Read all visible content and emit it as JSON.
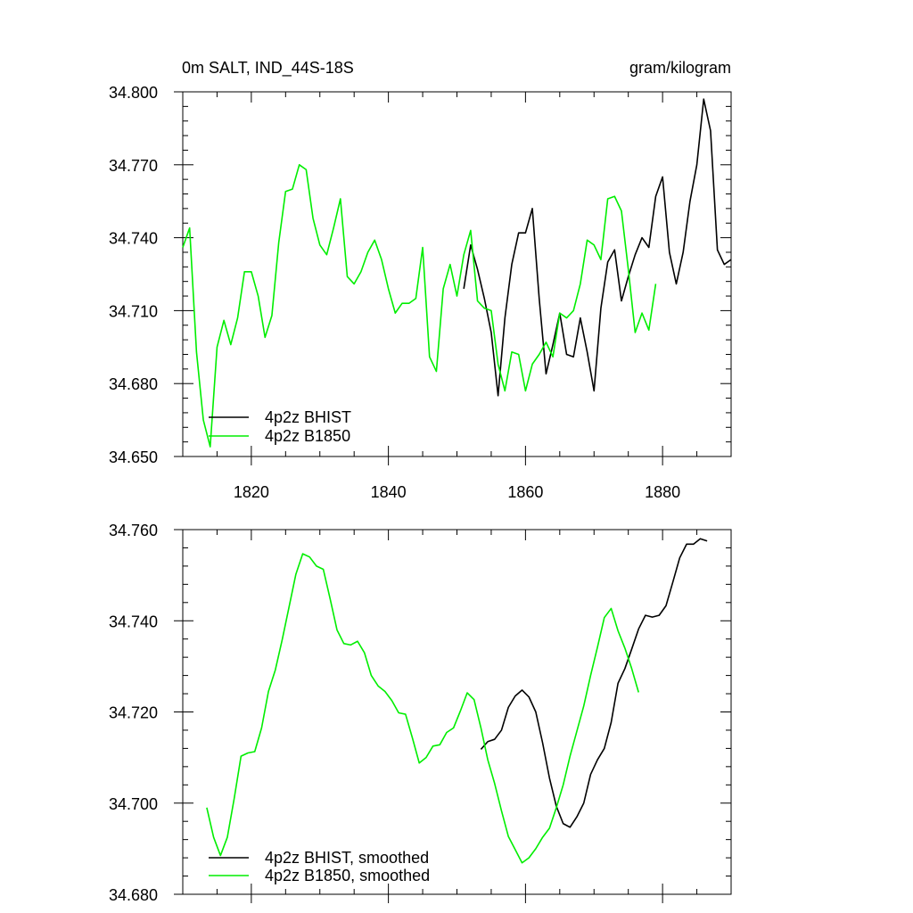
{
  "chart_data": [
    {
      "type": "line",
      "title": "0m SALT, IND_44S-18S",
      "units": "gram/kilogram",
      "xlim": [
        1810,
        1890
      ],
      "ylim": [
        34.65,
        34.8
      ],
      "xticks": [
        "1820",
        "1840",
        "1860",
        "1880"
      ],
      "yticks": [
        "34.650",
        "34.680",
        "34.710",
        "34.740",
        "34.770",
        "34.800"
      ],
      "series": [
        {
          "name": "4p2z BHIST",
          "color": "#000000",
          "x0": 1851,
          "values": [
            34.719,
            34.737,
            34.727,
            34.715,
            34.701,
            34.675,
            34.707,
            34.729,
            34.742,
            34.742,
            34.752,
            34.715,
            34.684,
            34.696,
            34.709,
            34.692,
            34.691,
            34.707,
            34.693,
            34.677,
            34.711,
            34.73,
            34.735,
            34.714,
            34.724,
            34.733,
            34.74,
            34.736,
            34.757,
            34.765,
            34.734,
            34.721,
            34.734,
            34.755,
            34.77,
            34.797,
            34.784,
            34.735,
            34.729,
            34.731
          ]
        },
        {
          "name": "4p2z B1850",
          "color": "#00ee00",
          "x0": 1810,
          "values": [
            34.736,
            34.744,
            34.693,
            34.665,
            34.654,
            34.695,
            34.706,
            34.696,
            34.707,
            34.726,
            34.726,
            34.716,
            34.699,
            34.708,
            34.738,
            34.759,
            34.76,
            34.77,
            34.768,
            34.748,
            34.737,
            34.733,
            34.744,
            34.756,
            34.724,
            34.721,
            34.726,
            34.734,
            34.739,
            34.731,
            34.719,
            34.709,
            34.713,
            34.713,
            34.715,
            34.736,
            34.691,
            34.685,
            34.719,
            34.729,
            34.716,
            34.733,
            34.743,
            34.714,
            34.711,
            34.71,
            34.688,
            34.677,
            34.693,
            34.692,
            34.677,
            34.688,
            34.692,
            34.697,
            34.691,
            34.709,
            34.707,
            34.71,
            34.721,
            34.739,
            34.737,
            34.731,
            34.756,
            34.757,
            34.751,
            34.727,
            34.701,
            34.709,
            34.702,
            34.721
          ]
        }
      ]
    },
    {
      "type": "line",
      "xlim": [
        1810,
        1890
      ],
      "ylim": [
        34.68,
        34.76
      ],
      "yticks": [
        "34.680",
        "34.700",
        "34.720",
        "34.740",
        "34.760"
      ],
      "series": [
        {
          "name": "4p2z BHIST, smoothed",
          "color": "#000000",
          "x0": 1853.5,
          "values": [
            34.7118,
            34.7135,
            34.714,
            34.716,
            34.721,
            34.7235,
            34.7248,
            34.7233,
            34.72,
            34.7132,
            34.7055,
            34.6993,
            34.6955,
            34.6947,
            34.697,
            34.7,
            34.7063,
            34.7095,
            34.712,
            34.7177,
            34.7263,
            34.7295,
            34.7338,
            34.7382,
            34.7412,
            34.7408,
            34.7412,
            34.7433,
            34.7485,
            34.7538,
            34.7568,
            34.7568,
            34.758,
            34.7575
          ]
        },
        {
          "name": "4p2z B1850, smoothed",
          "color": "#00ee00",
          "x0": 1813.5,
          "values": [
            34.699,
            34.6925,
            34.6885,
            34.6925,
            34.701,
            34.7103,
            34.711,
            34.7113,
            34.7165,
            34.7245,
            34.7292,
            34.7358,
            34.743,
            34.7502,
            34.7547,
            34.754,
            34.752,
            34.7513,
            34.7448,
            34.738,
            34.735,
            34.7347,
            34.7355,
            34.733,
            34.728,
            34.7257,
            34.7245,
            34.7225,
            34.7198,
            34.7195,
            34.7143,
            34.7088,
            34.71,
            34.7125,
            34.7128,
            34.7155,
            34.7165,
            34.7202,
            34.7242,
            34.7227,
            34.7165,
            34.7095,
            34.7043,
            34.6983,
            34.6927,
            34.6898,
            34.6869,
            34.688,
            34.69,
            34.6925,
            34.6945,
            34.699,
            34.704,
            34.7103,
            34.7158,
            34.7213,
            34.728,
            34.7342,
            34.7407,
            34.7427,
            34.7378,
            34.734,
            34.7295,
            34.7243
          ]
        }
      ]
    }
  ]
}
